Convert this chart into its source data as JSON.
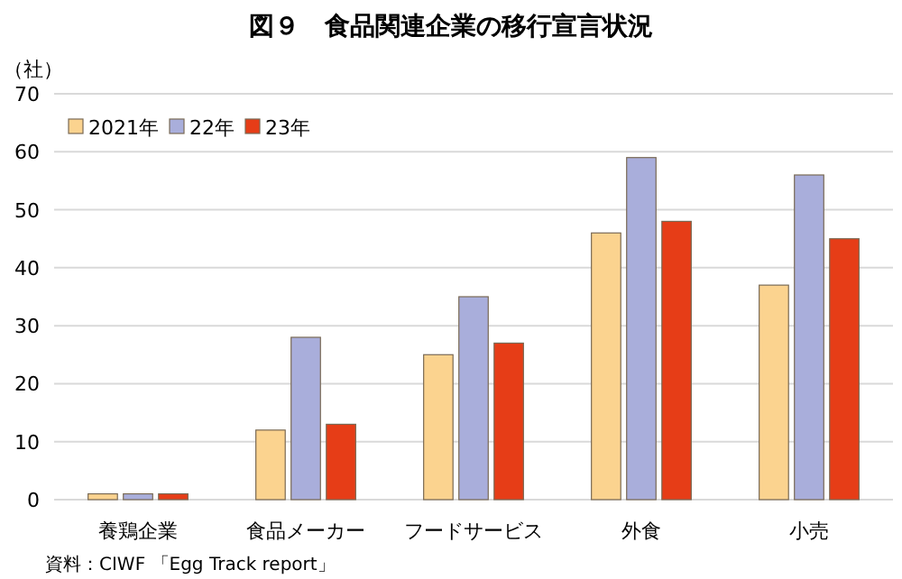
{
  "chart_data": {
    "type": "bar",
    "title": "図９　食品関連企業の移行宣言状況",
    "ylabel": "（社）",
    "categories": [
      "養鶏企業",
      "食品メーカー",
      "フードサービス",
      "外食",
      "小売"
    ],
    "series": [
      {
        "name": "2021年",
        "color": "#fbd38f",
        "values": [
          1,
          12,
          25,
          46,
          37
        ]
      },
      {
        "name": "22年",
        "color": "#a9aedb",
        "values": [
          1,
          28,
          35,
          59,
          56
        ]
      },
      {
        "name": "23年",
        "color": "#e63d17",
        "values": [
          1,
          13,
          27,
          48,
          45
        ]
      }
    ],
    "ylim": [
      0,
      70
    ],
    "yticks": [
      0,
      10,
      20,
      30,
      40,
      50,
      60,
      70
    ],
    "grid": "y",
    "legend": "top left",
    "annotations": [
      "資料：CIWF 「Egg Track report」"
    ]
  }
}
